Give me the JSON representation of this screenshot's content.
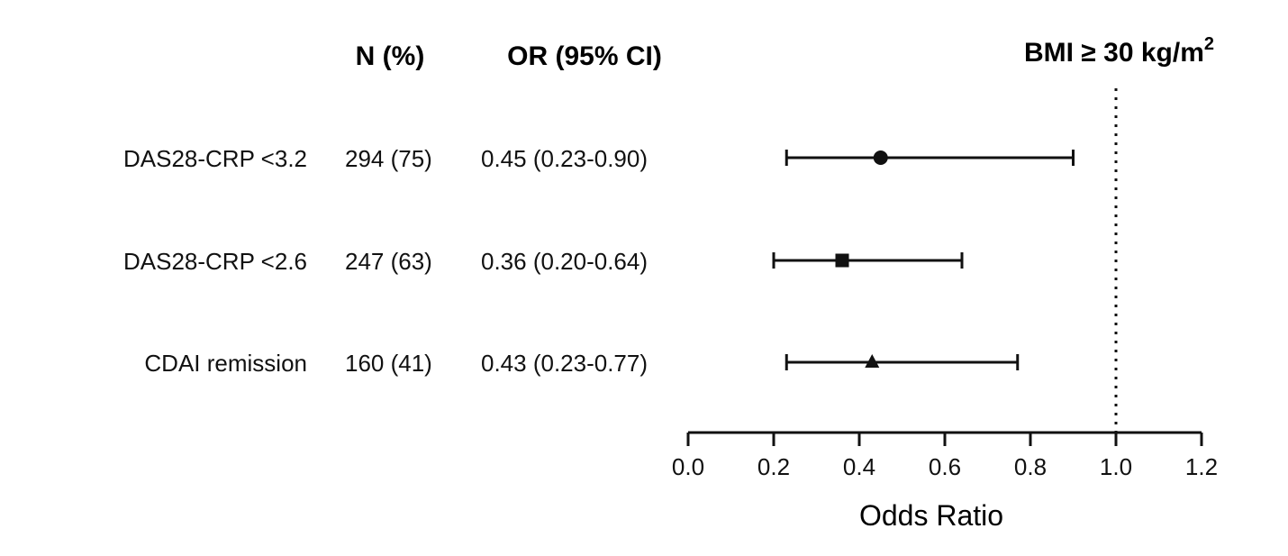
{
  "chart_data": {
    "type": "forest",
    "title": "BMI ≥ 30 kg/m",
    "title_superscript": "2",
    "columns": {
      "n_header": "N (%)",
      "or_header": "OR (95% CI)"
    },
    "rows": [
      {
        "label": "DAS28-CRP <3.2",
        "n": "294 (75)",
        "or_text": "0.45 (0.23-0.90)",
        "or": 0.45,
        "ci_low": 0.23,
        "ci_high": 0.9,
        "marker": "circle"
      },
      {
        "label": "DAS28-CRP <2.6",
        "n": "247 (63)",
        "or_text": "0.36 (0.20-0.64)",
        "or": 0.36,
        "ci_low": 0.2,
        "ci_high": 0.64,
        "marker": "square"
      },
      {
        "label": "CDAI remission",
        "n": "160 (41)",
        "or_text": "0.43 (0.23-0.77)",
        "or": 0.43,
        "ci_low": 0.23,
        "ci_high": 0.77,
        "marker": "triangle"
      }
    ],
    "xlabel": "Odds Ratio",
    "xlim": [
      0.0,
      1.2
    ],
    "xticks": [
      "0.0",
      "0.2",
      "0.4",
      "0.6",
      "0.8",
      "1.0",
      "1.2"
    ],
    "reference_line": 1.0,
    "color": "#111111"
  }
}
